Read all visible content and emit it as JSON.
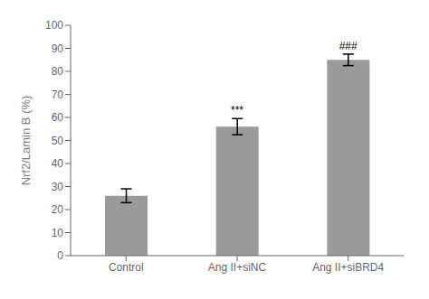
{
  "chart_data": {
    "type": "bar",
    "categories": [
      "Control",
      "Ang II+siNC",
      "Ang II+siBRD4"
    ],
    "values": [
      26,
      56,
      85
    ],
    "errors": [
      3,
      3.5,
      2.5
    ],
    "color": "#9a9a9a",
    "ylabel": "Nrf2/Lamin B (%)",
    "ylim": [
      0,
      100
    ],
    "yticks": [
      0,
      10,
      20,
      30,
      40,
      50,
      60,
      70,
      80,
      90,
      100
    ],
    "annotations": [
      {
        "category": "Ang II+siNC",
        "text": "***"
      },
      {
        "category": "Ang II+siBRD4",
        "text": "###"
      }
    ],
    "grid": false
  }
}
